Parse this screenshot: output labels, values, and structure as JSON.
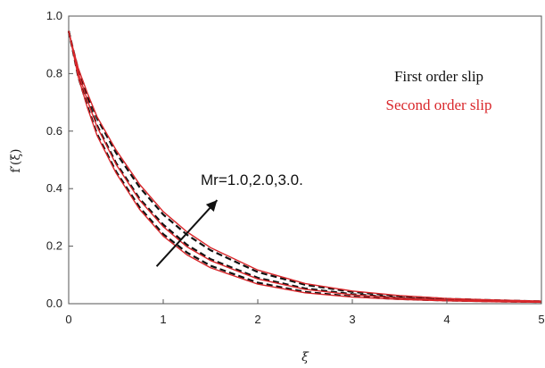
{
  "chart_data": {
    "type": "line",
    "xlabel": "ξ",
    "ylabel": "f′(ξ)",
    "xlim": [
      0,
      5
    ],
    "ylim": [
      0,
      1.0
    ],
    "x_ticks": [
      "0",
      "1",
      "2",
      "3",
      "4",
      "5"
    ],
    "y_ticks": [
      "0.0",
      "0.2",
      "0.4",
      "0.6",
      "0.8",
      "1.0"
    ],
    "grid": false,
    "legend_position": "top-right",
    "legend": [
      {
        "label": "First order slip",
        "color": "#111111"
      },
      {
        "label": "Second order slip",
        "color": "#d9262a"
      }
    ],
    "annotation": {
      "text": "Mr=1.0,2.0,3.0.",
      "arrow": {
        "from": [
          0.93,
          0.13
        ],
        "to": [
          1.57,
          0.36
        ]
      }
    },
    "x": [
      0,
      0.05,
      0.1,
      0.2,
      0.3,
      0.5,
      0.75,
      1.0,
      1.25,
      1.5,
      2.0,
      2.5,
      3.0,
      3.5,
      4.0,
      4.5,
      5.0
    ],
    "series": [
      {
        "style": "first-order-slip",
        "color": "#111111",
        "values": [
          0.948,
          0.87,
          0.79,
          0.685,
          0.59,
          0.46,
          0.335,
          0.242,
          0.178,
          0.132,
          0.073,
          0.041,
          0.025,
          0.016,
          0.011,
          0.008,
          0.006
        ]
      },
      {
        "style": "first-order-slip",
        "color": "#111111",
        "values": [
          0.948,
          0.875,
          0.805,
          0.71,
          0.62,
          0.49,
          0.365,
          0.275,
          0.205,
          0.155,
          0.09,
          0.053,
          0.033,
          0.021,
          0.014,
          0.01,
          0.007
        ]
      },
      {
        "style": "first-order-slip",
        "color": "#111111",
        "values": [
          0.948,
          0.88,
          0.815,
          0.725,
          0.645,
          0.525,
          0.405,
          0.31,
          0.24,
          0.186,
          0.11,
          0.066,
          0.041,
          0.026,
          0.017,
          0.012,
          0.008
        ]
      },
      {
        "style": "second-order-slip",
        "color": "#d9262a",
        "values": [
          0.948,
          0.87,
          0.79,
          0.68,
          0.585,
          0.455,
          0.328,
          0.235,
          0.17,
          0.125,
          0.068,
          0.038,
          0.023,
          0.015,
          0.01,
          0.007,
          0.005
        ]
      },
      {
        "style": "second-order-slip",
        "color": "#d9262a",
        "values": [
          0.948,
          0.875,
          0.805,
          0.705,
          0.615,
          0.485,
          0.36,
          0.268,
          0.198,
          0.15,
          0.086,
          0.05,
          0.031,
          0.02,
          0.013,
          0.009,
          0.006
        ]
      },
      {
        "style": "second-order-slip",
        "color": "#d9262a",
        "values": [
          0.948,
          0.882,
          0.82,
          0.73,
          0.65,
          0.535,
          0.415,
          0.32,
          0.25,
          0.195,
          0.117,
          0.07,
          0.044,
          0.028,
          0.018,
          0.013,
          0.009
        ]
      }
    ]
  }
}
